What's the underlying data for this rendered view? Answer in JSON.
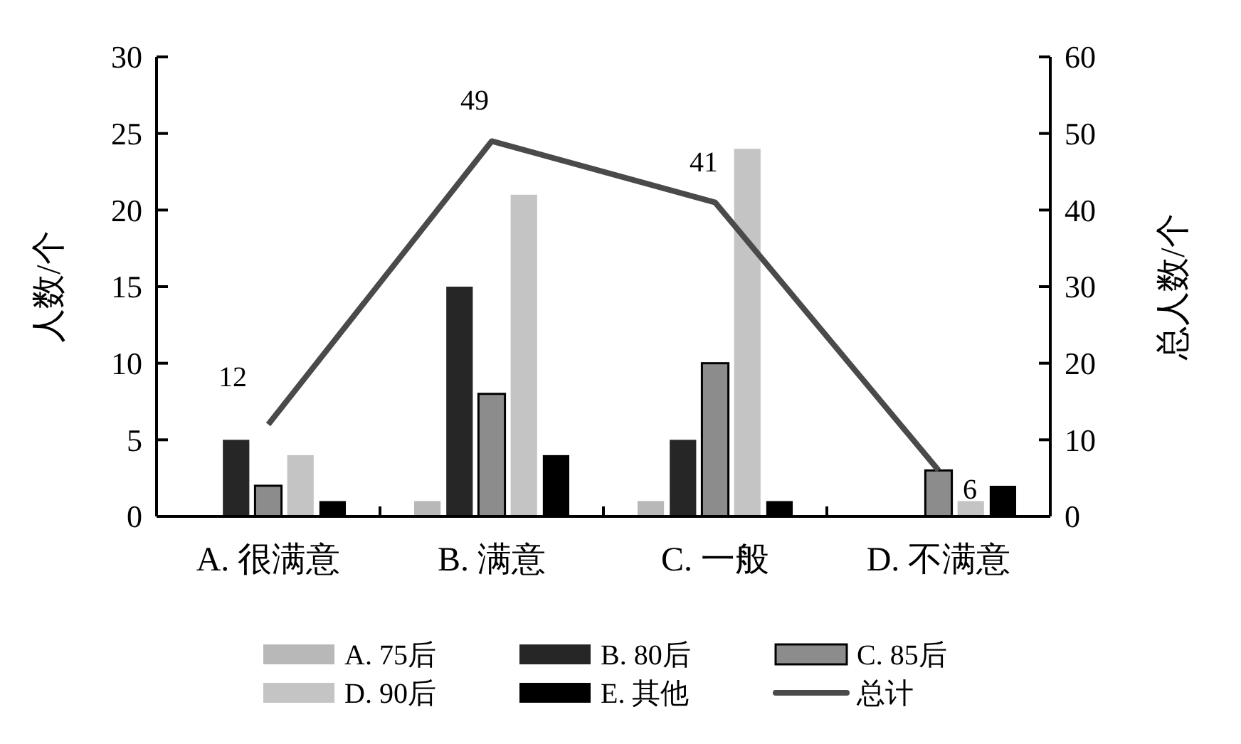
{
  "chart_data": {
    "type": "bar",
    "categories": [
      "A. 很满意",
      "B. 满意",
      "C. 一般",
      "D. 不满意"
    ],
    "ylabel": "人数/个",
    "y2label": "总人数/个",
    "ylim": [
      0,
      30
    ],
    "yticks": [
      0,
      5,
      10,
      15,
      20,
      25,
      30
    ],
    "y2lim": [
      0,
      60
    ],
    "y2ticks": [
      0,
      10,
      20,
      30,
      40,
      50,
      60
    ],
    "legend": "bottom",
    "series": [
      {
        "name": "A. 75后",
        "color": "#b8b8b8",
        "values": [
          0,
          1,
          1,
          0
        ]
      },
      {
        "name": "B. 80后",
        "color": "#262626",
        "values": [
          5,
          15,
          5,
          0
        ]
      },
      {
        "name": "C. 85后",
        "color": "#8c8c8c",
        "values": [
          2,
          8,
          10,
          3
        ]
      },
      {
        "name": "D. 90后",
        "color": "#c4c4c4",
        "values": [
          4,
          21,
          24,
          1
        ]
      },
      {
        "name": "E. 其他",
        "color": "#000000",
        "values": [
          1,
          4,
          1,
          2
        ]
      },
      {
        "name": "总计",
        "type": "line",
        "axis": "y2",
        "color": "#4a4a4a",
        "values": [
          12,
          49,
          41,
          6
        ],
        "value_labels": [
          "12",
          "49",
          "41",
          "6"
        ]
      }
    ]
  }
}
